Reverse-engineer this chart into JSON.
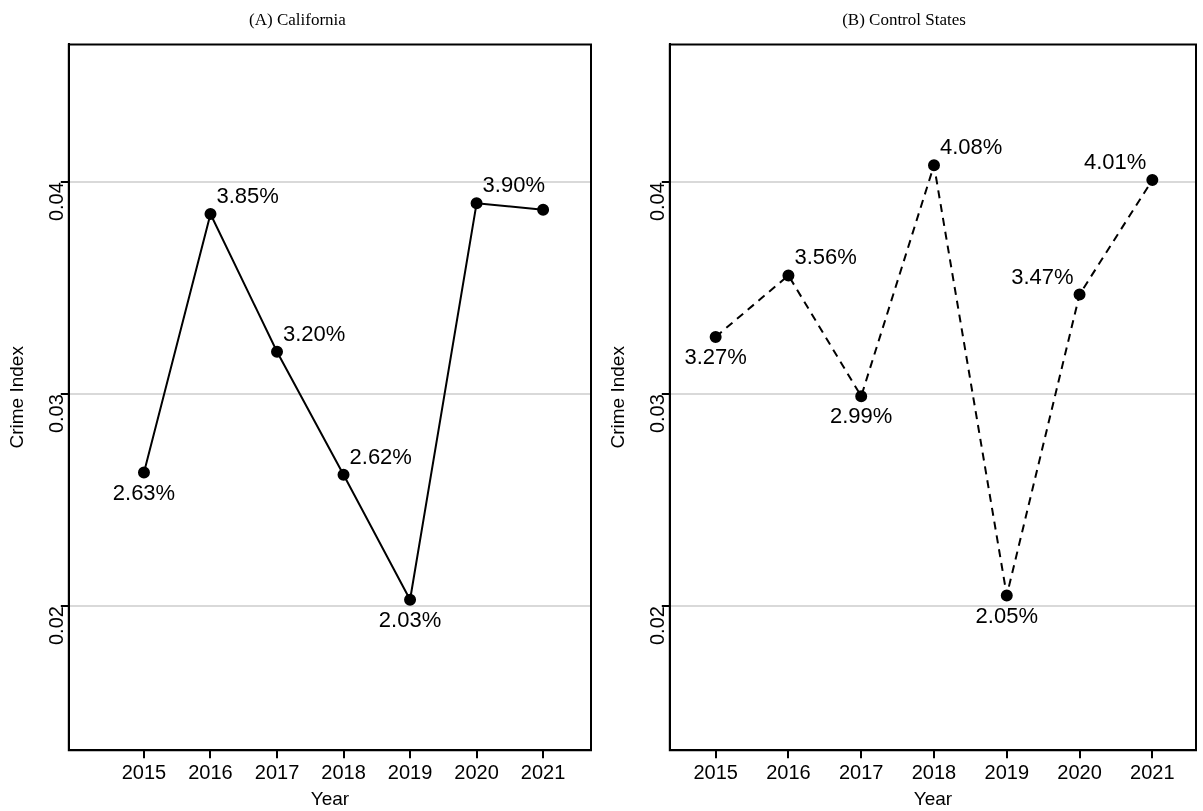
{
  "chart_data": [
    {
      "type": "line",
      "title": "(A) California",
      "xlabel": "Year",
      "ylabel": "Crime Index",
      "x": [
        2015,
        2016,
        2017,
        2018,
        2019,
        2020,
        2021
      ],
      "series": [
        {
          "color": "#000000",
          "values": [
            0.0263,
            0.0385,
            0.032,
            0.0262,
            0.0203,
            0.039,
            0.0387
          ],
          "value_labels": [
            "2.63%",
            "3.85%",
            "3.20%",
            "2.62%",
            "2.03%",
            "3.90%",
            null
          ]
        }
      ],
      "xlim": [
        2013.87,
        2021.72
      ],
      "xticks": [
        2015,
        2016,
        2017,
        2018,
        2019,
        2020,
        2021
      ],
      "ylim": [
        0.0132,
        0.0465
      ],
      "yticks": [
        0.02,
        0.03,
        0.04
      ],
      "grid": "y",
      "marker": "circle",
      "line_style": "solid"
    },
    {
      "type": "line",
      "title": "(B) Control States",
      "xlabel": "Year",
      "ylabel": "Crime Index",
      "x": [
        2015,
        2016,
        2017,
        2018,
        2019,
        2020,
        2021
      ],
      "series": [
        {
          "color": "#000000",
          "values": [
            0.0327,
            0.0356,
            0.0299,
            0.0408,
            0.0205,
            0.0347,
            0.0401
          ],
          "value_labels": [
            "3.27%",
            "3.56%",
            "2.99%",
            "4.08%",
            "2.05%",
            "3.47%",
            "4.01%"
          ]
        }
      ],
      "xlim": [
        2014.37,
        2021.6
      ],
      "xticks": [
        2015,
        2016,
        2017,
        2018,
        2019,
        2020,
        2021
      ],
      "ylim": [
        0.0132,
        0.0465
      ],
      "yticks": [
        0.02,
        0.03,
        0.04
      ],
      "grid": "y",
      "marker": "circle",
      "line_style": "dashed"
    }
  ]
}
